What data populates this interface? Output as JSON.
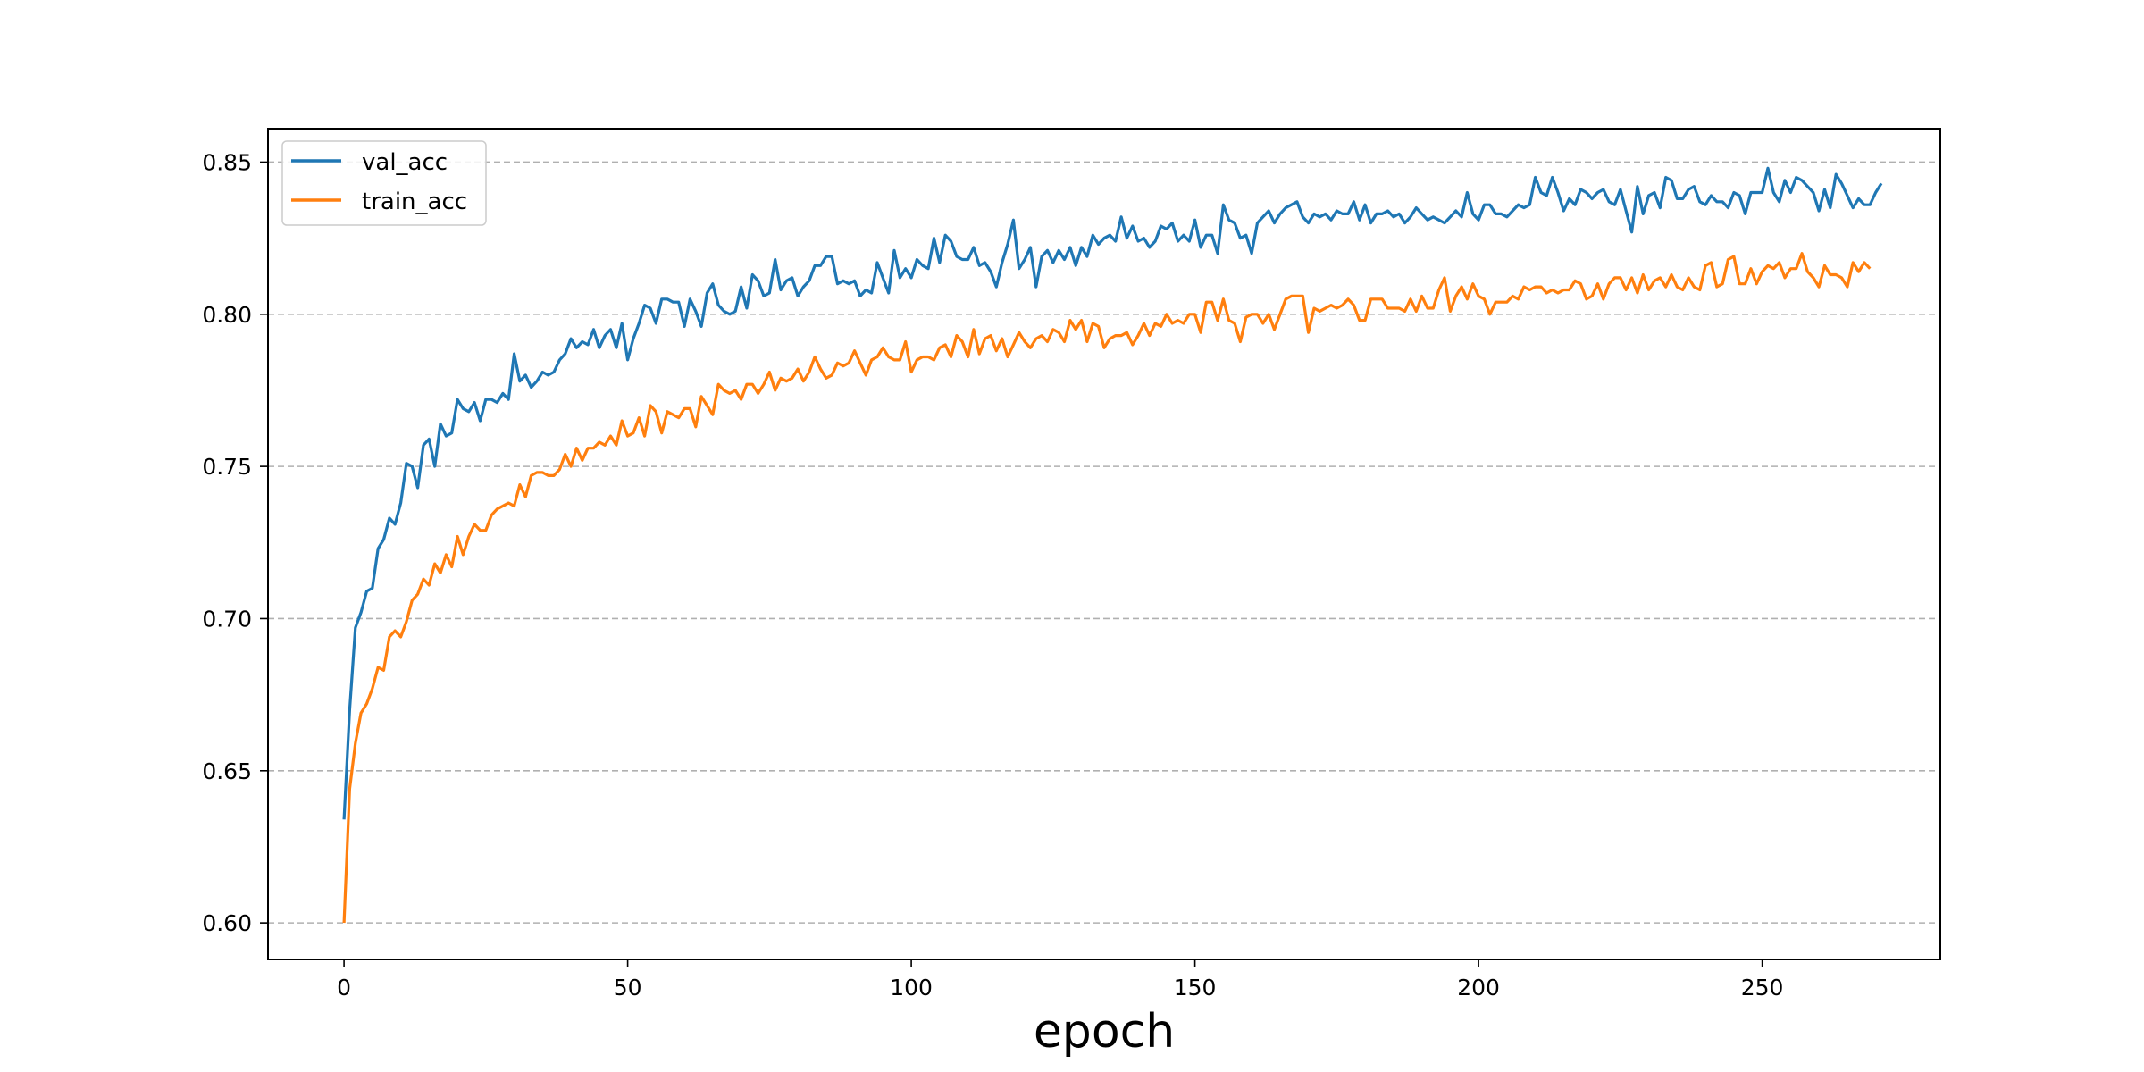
{
  "chart_data": {
    "type": "line",
    "title": "",
    "xlabel": "epoch",
    "ylabel": "",
    "xlim": [
      -13.4,
      281.4
    ],
    "ylim": [
      0.588,
      0.861
    ],
    "x_ticks": [
      0,
      50,
      100,
      150,
      200,
      250
    ],
    "y_ticks": [
      0.6,
      0.65,
      0.7,
      0.75,
      0.8,
      0.85
    ],
    "x_tick_labels": [
      "0",
      "50",
      "100",
      "150",
      "200",
      "250"
    ],
    "y_tick_labels": [
      "0.60",
      "0.65",
      "0.70",
      "0.75",
      "0.80",
      "0.85"
    ],
    "grid": "horizontal dashed",
    "legend_position": "upper-left",
    "x_start": 0,
    "x_step": 1,
    "series": [
      {
        "name": "val_acc",
        "color": "#1f77b4",
        "values": [
          0.634,
          0.67,
          0.697,
          0.702,
          0.709,
          0.71,
          0.723,
          0.726,
          0.733,
          0.731,
          0.738,
          0.751,
          0.75,
          0.743,
          0.757,
          0.759,
          0.75,
          0.764,
          0.76,
          0.761,
          0.772,
          0.769,
          0.768,
          0.771,
          0.765,
          0.772,
          0.772,
          0.771,
          0.774,
          0.772,
          0.787,
          0.778,
          0.78,
          0.776,
          0.778,
          0.781,
          0.78,
          0.781,
          0.785,
          0.787,
          0.792,
          0.789,
          0.791,
          0.79,
          0.795,
          0.789,
          0.793,
          0.795,
          0.789,
          0.797,
          0.785,
          0.792,
          0.797,
          0.803,
          0.802,
          0.797,
          0.805,
          0.805,
          0.804,
          0.804,
          0.796,
          0.805,
          0.801,
          0.796,
          0.807,
          0.81,
          0.803,
          0.801,
          0.8,
          0.801,
          0.809,
          0.802,
          0.813,
          0.811,
          0.806,
          0.807,
          0.818,
          0.808,
          0.811,
          0.812,
          0.806,
          0.809,
          0.811,
          0.816,
          0.816,
          0.819,
          0.819,
          0.81,
          0.811,
          0.81,
          0.811,
          0.806,
          0.808,
          0.807,
          0.817,
          0.812,
          0.807,
          0.821,
          0.812,
          0.815,
          0.812,
          0.818,
          0.816,
          0.815,
          0.825,
          0.817,
          0.826,
          0.824,
          0.819,
          0.818,
          0.818,
          0.822,
          0.816,
          0.817,
          0.814,
          0.809,
          0.817,
          0.823,
          0.831,
          0.815,
          0.818,
          0.822,
          0.809,
          0.819,
          0.821,
          0.817,
          0.821,
          0.818,
          0.822,
          0.816,
          0.822,
          0.819,
          0.826,
          0.823,
          0.825,
          0.826,
          0.824,
          0.832,
          0.825,
          0.829,
          0.824,
          0.825,
          0.822,
          0.824,
          0.829,
          0.828,
          0.83,
          0.824,
          0.826,
          0.824,
          0.831,
          0.822,
          0.826,
          0.826,
          0.82,
          0.836,
          0.831,
          0.83,
          0.825,
          0.826,
          0.82,
          0.83,
          0.832,
          0.834,
          0.83,
          0.833,
          0.835,
          0.836,
          0.837,
          0.832,
          0.83,
          0.833,
          0.832,
          0.833,
          0.831,
          0.834,
          0.833,
          0.833,
          0.837,
          0.831,
          0.836,
          0.83,
          0.833,
          0.833,
          0.834,
          0.832,
          0.833,
          0.83,
          0.832,
          0.835,
          0.833,
          0.831,
          0.832,
          0.831,
          0.83,
          0.832,
          0.834,
          0.832,
          0.84,
          0.833,
          0.831,
          0.836,
          0.836,
          0.833,
          0.833,
          0.832,
          0.834,
          0.836,
          0.835,
          0.836,
          0.845,
          0.84,
          0.839,
          0.845,
          0.84,
          0.834,
          0.838,
          0.836,
          0.841,
          0.84,
          0.838,
          0.84,
          0.841,
          0.837,
          0.836,
          0.841,
          0.834,
          0.827,
          0.842,
          0.833,
          0.839,
          0.84,
          0.835,
          0.845,
          0.844,
          0.838,
          0.838,
          0.841,
          0.842,
          0.837,
          0.836,
          0.839,
          0.837,
          0.837,
          0.835,
          0.84,
          0.839,
          0.833,
          0.84,
          0.84,
          0.84,
          0.848,
          0.84,
          0.837,
          0.844,
          0.84,
          0.845,
          0.844,
          0.842,
          0.84,
          0.834,
          0.841,
          0.835,
          0.846,
          0.843,
          0.839,
          0.835,
          0.838,
          0.836,
          0.836,
          0.84,
          0.843
        ]
      },
      {
        "name": "train_acc",
        "color": "#ff7f0e",
        "values": [
          0.6,
          0.644,
          0.659,
          0.669,
          0.672,
          0.677,
          0.684,
          0.683,
          0.694,
          0.696,
          0.694,
          0.699,
          0.706,
          0.708,
          0.713,
          0.711,
          0.718,
          0.715,
          0.721,
          0.717,
          0.727,
          0.721,
          0.727,
          0.731,
          0.729,
          0.729,
          0.734,
          0.736,
          0.737,
          0.738,
          0.737,
          0.744,
          0.74,
          0.747,
          0.748,
          0.748,
          0.747,
          0.747,
          0.749,
          0.754,
          0.75,
          0.756,
          0.752,
          0.756,
          0.756,
          0.758,
          0.757,
          0.76,
          0.757,
          0.765,
          0.76,
          0.761,
          0.766,
          0.76,
          0.77,
          0.768,
          0.761,
          0.768,
          0.767,
          0.766,
          0.769,
          0.769,
          0.763,
          0.773,
          0.77,
          0.767,
          0.777,
          0.775,
          0.774,
          0.775,
          0.772,
          0.777,
          0.777,
          0.774,
          0.777,
          0.781,
          0.775,
          0.779,
          0.778,
          0.779,
          0.782,
          0.778,
          0.781,
          0.786,
          0.782,
          0.779,
          0.78,
          0.784,
          0.783,
          0.784,
          0.788,
          0.784,
          0.78,
          0.785,
          0.786,
          0.789,
          0.786,
          0.785,
          0.785,
          0.791,
          0.781,
          0.785,
          0.786,
          0.786,
          0.785,
          0.789,
          0.79,
          0.786,
          0.793,
          0.791,
          0.786,
          0.795,
          0.787,
          0.792,
          0.793,
          0.788,
          0.792,
          0.786,
          0.79,
          0.794,
          0.791,
          0.789,
          0.792,
          0.793,
          0.791,
          0.795,
          0.794,
          0.791,
          0.798,
          0.795,
          0.798,
          0.791,
          0.797,
          0.796,
          0.789,
          0.792,
          0.793,
          0.793,
          0.794,
          0.79,
          0.793,
          0.797,
          0.793,
          0.797,
          0.796,
          0.8,
          0.797,
          0.798,
          0.797,
          0.8,
          0.8,
          0.794,
          0.804,
          0.804,
          0.798,
          0.805,
          0.798,
          0.797,
          0.791,
          0.799,
          0.8,
          0.8,
          0.797,
          0.8,
          0.795,
          0.8,
          0.805,
          0.806,
          0.806,
          0.806,
          0.794,
          0.802,
          0.801,
          0.802,
          0.803,
          0.802,
          0.803,
          0.805,
          0.803,
          0.798,
          0.798,
          0.805,
          0.805,
          0.805,
          0.802,
          0.802,
          0.802,
          0.801,
          0.805,
          0.801,
          0.806,
          0.802,
          0.802,
          0.808,
          0.812,
          0.801,
          0.806,
          0.809,
          0.805,
          0.81,
          0.806,
          0.805,
          0.8,
          0.804,
          0.804,
          0.804,
          0.806,
          0.805,
          0.809,
          0.808,
          0.809,
          0.809,
          0.807,
          0.808,
          0.807,
          0.808,
          0.808,
          0.811,
          0.81,
          0.805,
          0.806,
          0.81,
          0.805,
          0.81,
          0.812,
          0.812,
          0.808,
          0.812,
          0.807,
          0.813,
          0.808,
          0.811,
          0.812,
          0.809,
          0.813,
          0.809,
          0.808,
          0.812,
          0.809,
          0.808,
          0.816,
          0.817,
          0.809,
          0.81,
          0.818,
          0.819,
          0.81,
          0.81,
          0.815,
          0.81,
          0.814,
          0.816,
          0.815,
          0.817,
          0.812,
          0.815,
          0.815,
          0.82,
          0.814,
          0.812,
          0.809,
          0.816,
          0.813,
          0.813,
          0.812,
          0.809,
          0.817,
          0.814,
          0.817,
          0.815
        ]
      }
    ]
  }
}
